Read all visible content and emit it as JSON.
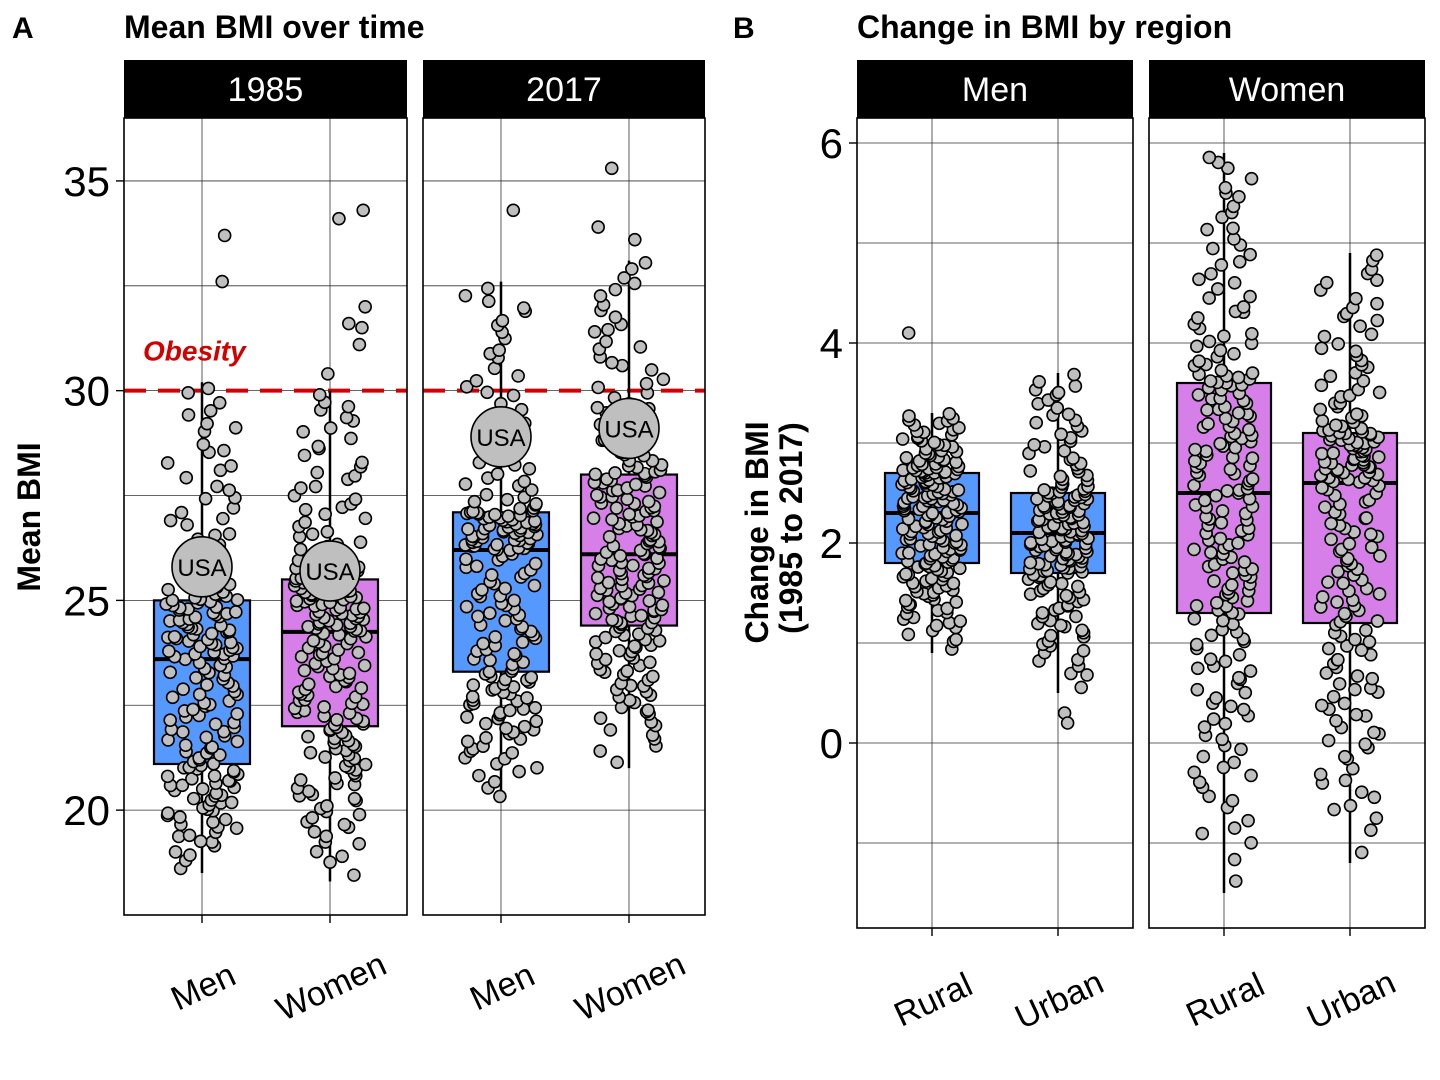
{
  "chart_data": [
    {
      "panel": "A",
      "type": "box",
      "title": "Mean BMI over time",
      "ylabel": "Mean BMI",
      "xlabel": "",
      "ylim": [
        17.5,
        36.5
      ],
      "yticks": [
        20,
        25,
        30,
        35
      ],
      "facets": [
        "1985",
        "2017"
      ],
      "categories": [
        "Men",
        "Women"
      ],
      "grid": true,
      "reference_line": {
        "value": 30,
        "label": "Obesity",
        "color": "#d40000",
        "style": "dashed"
      },
      "highlight_label": "USA",
      "fill_colors": {
        "Men": "#5599ff",
        "Women": "#d67fe8"
      },
      "groups": [
        {
          "facet": "1985",
          "category": "Men",
          "q1": 21.1,
          "median": 23.6,
          "q3": 25.0,
          "whisker_low": 18.5,
          "whisker_high": 30.2,
          "usa": 25.8,
          "outliers": [
            33.7,
            32.6
          ],
          "n_points": 190
        },
        {
          "facet": "1985",
          "category": "Women",
          "q1": 22.0,
          "median": 24.25,
          "q3": 25.5,
          "whisker_low": 18.3,
          "whisker_high": 30.0,
          "usa": 25.7,
          "outliers": [
            34.3,
            34.1,
            32.0,
            31.6,
            31.5,
            31.1,
            30.4
          ],
          "n_points": 200
        },
        {
          "facet": "2017",
          "category": "Men",
          "q1": 23.3,
          "median": 26.2,
          "q3": 27.1,
          "whisker_low": 20.2,
          "whisker_high": 32.6,
          "usa": 28.9,
          "outliers": [
            34.3
          ],
          "n_points": 200
        },
        {
          "facet": "2017",
          "category": "Women",
          "q1": 24.4,
          "median": 26.1,
          "q3": 28.0,
          "whisker_low": 21.0,
          "whisker_high": 33.1,
          "usa": 29.1,
          "outliers": [
            35.3,
            33.9,
            33.6
          ],
          "n_points": 200
        }
      ]
    },
    {
      "panel": "B",
      "type": "box",
      "title": "Change in BMI by region",
      "ylabel": "Change in BMI\n(1985 to 2017)",
      "ylabel_lines": [
        "Change in BMI",
        "(1985 to 2017)"
      ],
      "xlabel": "",
      "ylim": [
        -1.85,
        6.25
      ],
      "yticks": [
        0,
        2,
        4,
        6
      ],
      "facets": [
        "Men",
        "Women"
      ],
      "categories": [
        "Rural",
        "Urban"
      ],
      "grid": true,
      "groups": [
        {
          "facet": "Men",
          "category": "Rural",
          "q1": 1.8,
          "median": 2.3,
          "q3": 2.7,
          "whisker_low": 0.9,
          "whisker_high": 3.3,
          "outliers": [
            4.1
          ],
          "n_points": 190,
          "fill": "#5599ff"
        },
        {
          "facet": "Men",
          "category": "Urban",
          "q1": 1.7,
          "median": 2.1,
          "q3": 2.5,
          "whisker_low": 0.5,
          "whisker_high": 3.7,
          "outliers": [
            0.3,
            0.2
          ],
          "n_points": 170,
          "fill": "#5599ff"
        },
        {
          "facet": "Women",
          "category": "Rural",
          "q1": 1.3,
          "median": 2.5,
          "q3": 3.6,
          "whisker_low": -1.5,
          "whisker_high": 5.9,
          "outliers": [],
          "n_points": 200,
          "fill": "#d67fe8"
        },
        {
          "facet": "Women",
          "category": "Urban",
          "q1": 1.2,
          "median": 2.6,
          "q3": 3.1,
          "whisker_low": -1.2,
          "whisker_high": 4.9,
          "outliers": [],
          "n_points": 190,
          "fill": "#d67fe8"
        }
      ]
    }
  ],
  "colors": {
    "men_fill": "#5599ff",
    "women_fill": "#d67fe8",
    "points": "#bfbfbf",
    "strip": "#000000",
    "obesity_line": "#d40000"
  }
}
